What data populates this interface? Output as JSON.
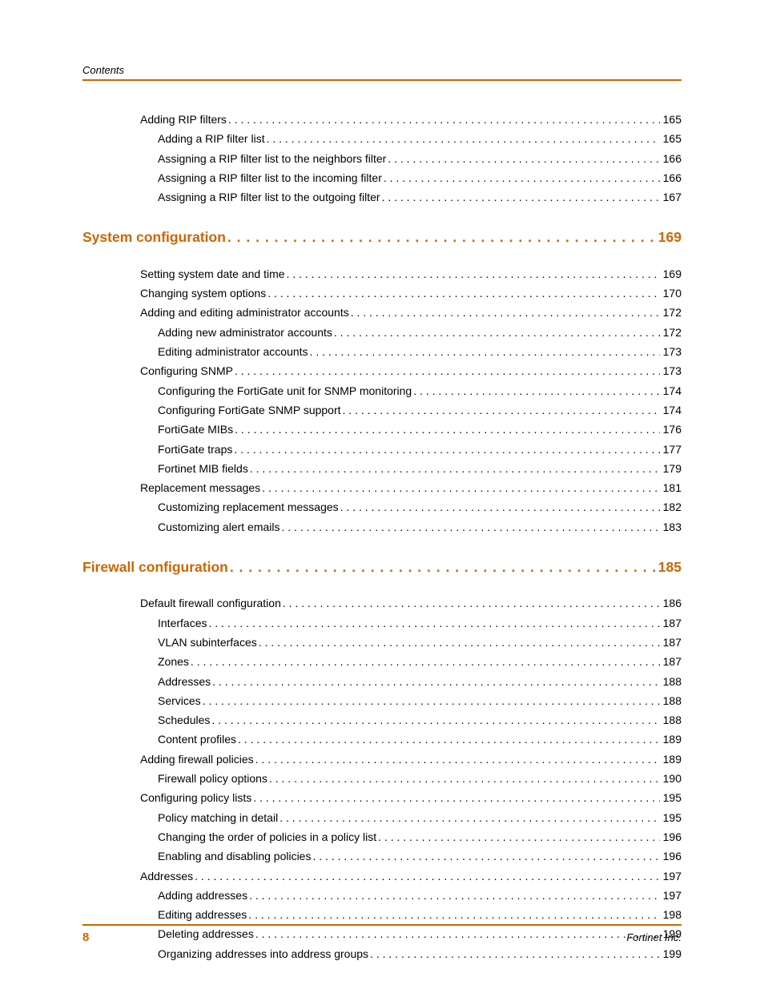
{
  "header": {
    "label": "Contents"
  },
  "footer": {
    "page": "8",
    "brand": "Fortinet Inc."
  },
  "colors": {
    "accent": "#cc6600",
    "text": "#000000",
    "bg": "#ffffff"
  },
  "typography": {
    "body_size_pt": 10.5,
    "section_size_pt": 13,
    "font_family": "Arial"
  },
  "toc": {
    "entries": [
      {
        "label": "Adding RIP filters",
        "page": "165",
        "indent": 1,
        "section": false
      },
      {
        "label": "Adding a RIP filter list",
        "page": "165",
        "indent": 2,
        "section": false
      },
      {
        "label": "Assigning a RIP filter list to the neighbors filter",
        "page": "166",
        "indent": 2,
        "section": false
      },
      {
        "label": "Assigning a RIP filter list to the incoming filter",
        "page": "166",
        "indent": 2,
        "section": false
      },
      {
        "label": "Assigning a RIP filter list to the outgoing filter",
        "page": "167",
        "indent": 2,
        "section": false
      },
      {
        "label": "System configuration",
        "page": "169",
        "indent": 0,
        "section": true
      },
      {
        "label": "Setting system date and time",
        "page": "169",
        "indent": 1,
        "section": false
      },
      {
        "label": "Changing system options",
        "page": "170",
        "indent": 1,
        "section": false
      },
      {
        "label": "Adding and editing administrator accounts",
        "page": "172",
        "indent": 1,
        "section": false
      },
      {
        "label": "Adding new administrator accounts",
        "page": "172",
        "indent": 2,
        "section": false
      },
      {
        "label": "Editing administrator accounts",
        "page": "173",
        "indent": 2,
        "section": false
      },
      {
        "label": "Configuring SNMP",
        "page": "173",
        "indent": 1,
        "section": false
      },
      {
        "label": "Configuring the FortiGate unit for SNMP monitoring",
        "page": "174",
        "indent": 2,
        "section": false
      },
      {
        "label": "Configuring FortiGate SNMP support",
        "page": "174",
        "indent": 2,
        "section": false
      },
      {
        "label": "FortiGate MIBs",
        "page": "176",
        "indent": 2,
        "section": false
      },
      {
        "label": "FortiGate traps",
        "page": "177",
        "indent": 2,
        "section": false
      },
      {
        "label": "Fortinet MIB fields",
        "page": "179",
        "indent": 2,
        "section": false
      },
      {
        "label": "Replacement messages",
        "page": "181",
        "indent": 1,
        "section": false
      },
      {
        "label": "Customizing replacement messages",
        "page": "182",
        "indent": 2,
        "section": false
      },
      {
        "label": "Customizing alert emails",
        "page": "183",
        "indent": 2,
        "section": false
      },
      {
        "label": "Firewall configuration",
        "page": "185",
        "indent": 0,
        "section": true
      },
      {
        "label": "Default firewall configuration",
        "page": "186",
        "indent": 1,
        "section": false
      },
      {
        "label": "Interfaces",
        "page": "187",
        "indent": 2,
        "section": false
      },
      {
        "label": "VLAN subinterfaces",
        "page": "187",
        "indent": 2,
        "section": false
      },
      {
        "label": "Zones",
        "page": "187",
        "indent": 2,
        "section": false
      },
      {
        "label": "Addresses",
        "page": "188",
        "indent": 2,
        "section": false
      },
      {
        "label": "Services",
        "page": "188",
        "indent": 2,
        "section": false
      },
      {
        "label": "Schedules",
        "page": "188",
        "indent": 2,
        "section": false
      },
      {
        "label": "Content profiles",
        "page": "189",
        "indent": 2,
        "section": false
      },
      {
        "label": "Adding firewall policies",
        "page": "189",
        "indent": 1,
        "section": false
      },
      {
        "label": "Firewall policy options",
        "page": "190",
        "indent": 2,
        "section": false
      },
      {
        "label": "Configuring policy lists",
        "page": "195",
        "indent": 1,
        "section": false
      },
      {
        "label": "Policy matching in detail",
        "page": "195",
        "indent": 2,
        "section": false
      },
      {
        "label": "Changing the order of policies in a policy list",
        "page": "196",
        "indent": 2,
        "section": false
      },
      {
        "label": "Enabling and disabling policies",
        "page": "196",
        "indent": 2,
        "section": false
      },
      {
        "label": "Addresses",
        "page": "197",
        "indent": 1,
        "section": false
      },
      {
        "label": "Adding addresses",
        "page": "197",
        "indent": 2,
        "section": false
      },
      {
        "label": "Editing addresses",
        "page": "198",
        "indent": 2,
        "section": false
      },
      {
        "label": "Deleting addresses",
        "page": "199",
        "indent": 2,
        "section": false
      },
      {
        "label": "Organizing addresses into address groups",
        "page": "199",
        "indent": 2,
        "section": false
      }
    ]
  }
}
